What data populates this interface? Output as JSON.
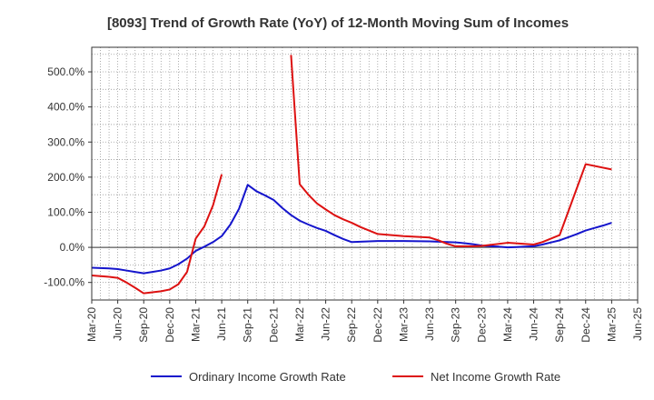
{
  "chart_data": {
    "type": "line",
    "title": "[8093]  Trend of Growth Rate (YoY) of 12-Month Moving Sum of Incomes",
    "xlabel": "",
    "ylabel": "",
    "ylim": [
      -150,
      570
    ],
    "y_ticks": [
      -100,
      0,
      100,
      200,
      300,
      400,
      500
    ],
    "y_tick_labels": [
      "-100.0%",
      "0.0%",
      "100.0%",
      "200.0%",
      "300.0%",
      "400.0%",
      "500.0%"
    ],
    "x_tick_labels": [
      "Mar-20",
      "Jun-20",
      "Sep-20",
      "Dec-20",
      "Mar-21",
      "Jun-21",
      "Sep-21",
      "Dec-21",
      "Mar-22",
      "Jun-22",
      "Sep-22",
      "Dec-22",
      "Mar-23",
      "Jun-23",
      "Sep-23",
      "Dec-23",
      "Mar-24",
      "Jun-24",
      "Sep-24",
      "Dec-24",
      "Mar-25",
      "Jun-25"
    ],
    "x_range": [
      "Mar-20",
      "Jun-25"
    ],
    "grid": true,
    "legend_position": "bottom",
    "series": [
      {
        "name": "Ordinary Income Growth Rate",
        "color": "#1515cc",
        "points": [
          [
            "Mar-20",
            -58
          ],
          [
            "Apr-20",
            -59
          ],
          [
            "May-20",
            -60
          ],
          [
            "Jun-20",
            -62
          ],
          [
            "Jul-20",
            -66
          ],
          [
            "Aug-20",
            -70
          ],
          [
            "Sep-20",
            -74
          ],
          [
            "Oct-20",
            -70
          ],
          [
            "Nov-20",
            -66
          ],
          [
            "Dec-20",
            -60
          ],
          [
            "Jan-21",
            -48
          ],
          [
            "Feb-21",
            -32
          ],
          [
            "Mar-21",
            -10
          ],
          [
            "Apr-21",
            2
          ],
          [
            "May-21",
            15
          ],
          [
            "Jun-21",
            32
          ],
          [
            "Jul-21",
            65
          ],
          [
            "Aug-21",
            110
          ],
          [
            "Sep-21",
            178
          ],
          [
            "Oct-21",
            160
          ],
          [
            "Nov-21",
            148
          ],
          [
            "Dec-21",
            135
          ],
          [
            "Jan-22",
            112
          ],
          [
            "Feb-22",
            92
          ],
          [
            "Mar-22",
            76
          ],
          [
            "Apr-22",
            65
          ],
          [
            "May-22",
            55
          ],
          [
            "Jun-22",
            47
          ],
          [
            "Jul-22",
            35
          ],
          [
            "Aug-22",
            24
          ],
          [
            "Sep-22",
            15
          ],
          [
            "Oct-22",
            16
          ],
          [
            "Nov-22",
            17
          ],
          [
            "Dec-22",
            18
          ],
          [
            "Mar-23",
            18
          ],
          [
            "Jun-23",
            17
          ],
          [
            "Sep-23",
            14
          ],
          [
            "Oct-23",
            12
          ],
          [
            "Nov-23",
            9
          ],
          [
            "Dec-23",
            5
          ],
          [
            "Jan-24",
            3
          ],
          [
            "Feb-24",
            2
          ],
          [
            "Mar-24",
            0
          ],
          [
            "Apr-24",
            1
          ],
          [
            "May-24",
            2
          ],
          [
            "Jun-24",
            3
          ],
          [
            "Jul-24",
            8
          ],
          [
            "Aug-24",
            14
          ],
          [
            "Sep-24",
            20
          ],
          [
            "Oct-24",
            29
          ],
          [
            "Nov-24",
            38
          ],
          [
            "Dec-24",
            48
          ],
          [
            "Jan-25",
            55
          ],
          [
            "Feb-25",
            62
          ],
          [
            "Mar-25",
            70
          ]
        ]
      },
      {
        "name": "Net Income Growth Rate",
        "color": "#dd1111",
        "segments": [
          [
            [
              "Mar-20",
              -80
            ],
            [
              "Apr-20",
              -82
            ],
            [
              "May-20",
              -84
            ],
            [
              "Jun-20",
              -87
            ],
            [
              "Jul-20",
              -100
            ],
            [
              "Aug-20",
              -115
            ],
            [
              "Sep-20",
              -131
            ],
            [
              "Oct-20",
              -128
            ],
            [
              "Nov-20",
              -125
            ],
            [
              "Dec-20",
              -120
            ],
            [
              "Jan-21",
              -105
            ],
            [
              "Feb-21",
              -70
            ],
            [
              "Mar-21",
              25
            ],
            [
              "Apr-21",
              60
            ],
            [
              "May-21",
              120
            ],
            [
              "Jun-21",
              208
            ]
          ],
          [
            [
              "Feb-22",
              548
            ],
            [
              "Mar-22",
              180
            ],
            [
              "Apr-22",
              150
            ],
            [
              "May-22",
              125
            ],
            [
              "Jun-22",
              108
            ],
            [
              "Jul-22",
              92
            ],
            [
              "Aug-22",
              80
            ],
            [
              "Sep-22",
              70
            ],
            [
              "Oct-22",
              58
            ],
            [
              "Nov-22",
              48
            ],
            [
              "Dec-22",
              38
            ],
            [
              "Mar-23",
              32
            ],
            [
              "Jun-23",
              28
            ],
            [
              "Jul-23",
              20
            ],
            [
              "Aug-23",
              10
            ],
            [
              "Sep-23",
              3
            ],
            [
              "Oct-23",
              3
            ],
            [
              "Nov-23",
              3
            ],
            [
              "Dec-23",
              4
            ],
            [
              "Mar-24",
              13
            ],
            [
              "Jun-24",
              8
            ],
            [
              "Jul-24",
              15
            ],
            [
              "Aug-24",
              25
            ],
            [
              "Sep-24",
              35
            ],
            [
              "Dec-24",
              237
            ],
            [
              "Mar-25",
              222
            ]
          ]
        ]
      }
    ]
  }
}
